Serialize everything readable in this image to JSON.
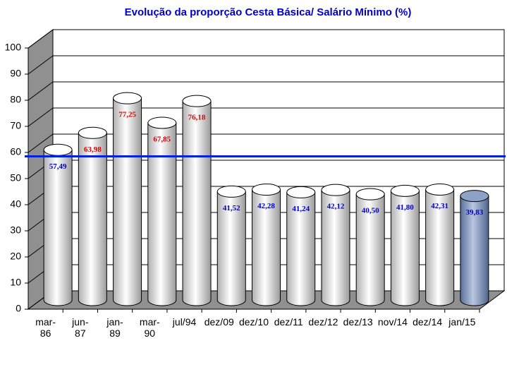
{
  "chart_data": {
    "type": "cylinder-bar",
    "title": "Evolução da proporção Cesta Básica/ Salário Mínimo (%)",
    "categories": [
      "mar-\n86",
      "jun-\n87",
      "jan-\n89",
      "mar-\n90",
      "jul/94",
      "dez/09",
      "dez/10",
      "dez/11",
      "dez/12",
      "dez/13",
      "nov/14",
      "dez/14",
      "jan/15"
    ],
    "values": [
      57.49,
      63.98,
      77.25,
      67.85,
      76.18,
      41.52,
      42.28,
      41.24,
      42.12,
      40.5,
      41.8,
      42.31,
      39.83
    ],
    "value_labels": [
      "57,49",
      "63,98",
      "77,25",
      "67,85",
      "76,18",
      "41,52",
      "42,28",
      "41,24",
      "42,12",
      "40,50",
      "41,80",
      "42,31",
      "39,83"
    ],
    "colors": [
      "#ffffff",
      "#ffffff",
      "#ffffff",
      "#ffffff",
      "#ffffff",
      "#ffffff",
      "#ffffff",
      "#ffffff",
      "#ffffff",
      "#ffffff",
      "#ffffff",
      "#ffffff",
      "#8ea2c8"
    ],
    "label_colors": [
      "#0000cc",
      "#dd0000",
      "#dd0000",
      "#dd0000",
      "#dd0000",
      "#0000cc",
      "#0000cc",
      "#0000cc",
      "#0000cc",
      "#0000cc",
      "#0000cc",
      "#0000cc",
      "#0000cc"
    ],
    "reference_line": 58.5,
    "reference_color": "#0022dd",
    "ylim": [
      0,
      100
    ],
    "yticks": [
      0,
      10,
      20,
      30,
      40,
      50,
      60,
      70,
      80,
      90,
      100
    ],
    "grid": true
  }
}
